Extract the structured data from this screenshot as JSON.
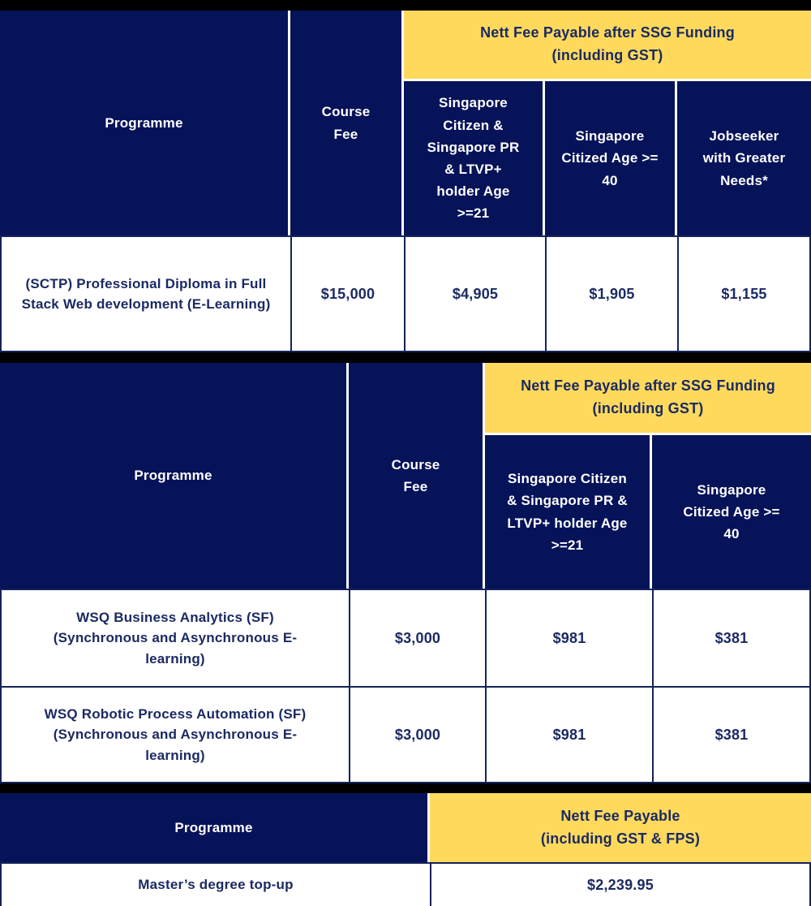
{
  "colors": {
    "navy_bg": "#061359",
    "yellow_bg": "#FFD95C",
    "text_navy": "#1B2A62",
    "border_navy": "#15235B",
    "separator_black": "#000000",
    "header_text_white": "#FFFFFF"
  },
  "tables": [
    {
      "programme_label": "Programme",
      "course_fee_label": "Course Fee",
      "nett_fee_label": "Nett Fee Payable after SSG Funding (including GST)",
      "sub_headers": [
        "Singapore Citizen & Singapore PR & LTVP+ holder Age >=21",
        "Singapore Citized Age >= 40",
        "Jobseeker with Greater Needs*"
      ],
      "rows": [
        [
          "(SCTP) Professional Diploma in Full Stack Web development (E-Learning)",
          "$15,000",
          "$4,905",
          "$1,905",
          "$1,155"
        ]
      ]
    },
    {
      "programme_label": "Programme",
      "course_fee_label": "Course Fee",
      "nett_fee_label": "Nett Fee Payable after SSG Funding (including GST)",
      "sub_headers": [
        "Singapore Citizen & Singapore PR & LTVP+ holder Age >=21",
        "Singapore Citized Age >= 40"
      ],
      "rows": [
        [
          "WSQ Business Analytics (SF) (Synchronous and Asynchronous E-learning)",
          "$3,000",
          "$981",
          "$381"
        ],
        [
          "WSQ Robotic Process Automation (SF) (Synchronous and Asynchronous E-learning)",
          "$3,000",
          "$981",
          "$381"
        ]
      ]
    },
    {
      "programme_label": "Programme",
      "nett_fee_label": "Nett Fee Payable (including GST & FPS)",
      "rows": [
        [
          "Master’s degree top-up",
          "$2,239.95"
        ]
      ]
    }
  ]
}
